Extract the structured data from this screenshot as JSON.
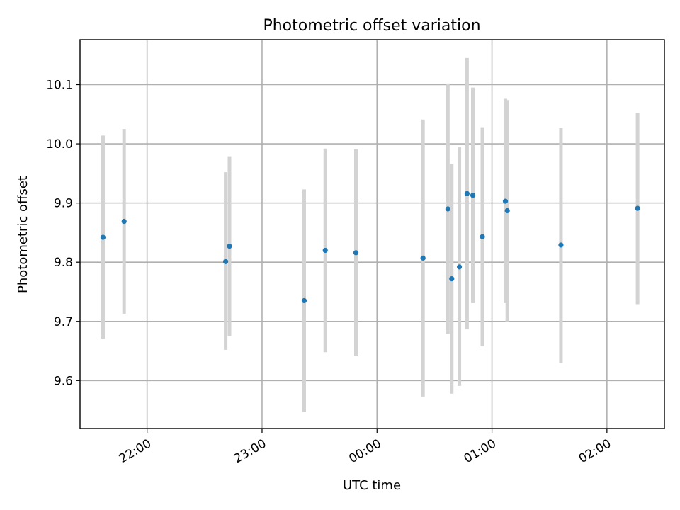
{
  "chart_data": {
    "type": "scatter",
    "title": "Photometric offset variation",
    "xlabel": "UTC time",
    "ylabel": "Photometric offset",
    "x_ticks": [
      "22:00",
      "23:00",
      "00:00",
      "01:00",
      "02:00"
    ],
    "x_tick_times": [
      "2024-01-01T22:00",
      "2024-01-01T23:00",
      "2024-01-02T00:00",
      "2024-01-02T01:00",
      "2024-01-02T02:00"
    ],
    "xlim": [
      "2024-01-01T21:25",
      "2024-01-02T02:30"
    ],
    "y_ticks": [
      9.6,
      9.7,
      9.8,
      9.9,
      10.0,
      10.1
    ],
    "ylim": [
      9.519,
      10.176
    ],
    "grid": true,
    "point_color": "#1f77b4",
    "errorbar_color": "#d3d3d3",
    "points": [
      {
        "t": "2024-01-01T21:37",
        "y": 9.842,
        "lo": 9.671,
        "hi": 10.014
      },
      {
        "t": "2024-01-01T21:48",
        "y": 9.869,
        "lo": 9.713,
        "hi": 10.025
      },
      {
        "t": "2024-01-01T22:41",
        "y": 9.801,
        "lo": 9.652,
        "hi": 9.952
      },
      {
        "t": "2024-01-01T22:43",
        "y": 9.827,
        "lo": 9.675,
        "hi": 9.979
      },
      {
        "t": "2024-01-01T23:22",
        "y": 9.735,
        "lo": 9.547,
        "hi": 9.923
      },
      {
        "t": "2024-01-01T23:33",
        "y": 9.82,
        "lo": 9.648,
        "hi": 9.992
      },
      {
        "t": "2024-01-01T23:49",
        "y": 9.816,
        "lo": 9.641,
        "hi": 9.991
      },
      {
        "t": "2024-01-02T00:24",
        "y": 9.807,
        "lo": 9.573,
        "hi": 10.041
      },
      {
        "t": "2024-01-02T00:37",
        "y": 9.89,
        "lo": 9.679,
        "hi": 10.102
      },
      {
        "t": "2024-01-02T00:39",
        "y": 9.772,
        "lo": 9.578,
        "hi": 9.966
      },
      {
        "t": "2024-01-02T00:43",
        "y": 9.792,
        "lo": 9.591,
        "hi": 9.994
      },
      {
        "t": "2024-01-02T00:47",
        "y": 9.916,
        "lo": 9.687,
        "hi": 10.145
      },
      {
        "t": "2024-01-02T00:50",
        "y": 9.913,
        "lo": 9.731,
        "hi": 10.095
      },
      {
        "t": "2024-01-02T00:55",
        "y": 9.843,
        "lo": 9.658,
        "hi": 10.028
      },
      {
        "t": "2024-01-02T01:07",
        "y": 9.903,
        "lo": 9.731,
        "hi": 10.076
      },
      {
        "t": "2024-01-02T01:08",
        "y": 9.887,
        "lo": 9.7,
        "hi": 10.074
      },
      {
        "t": "2024-01-02T01:36",
        "y": 9.829,
        "lo": 9.63,
        "hi": 10.027
      },
      {
        "t": "2024-01-02T02:16",
        "y": 9.891,
        "lo": 9.729,
        "hi": 10.052
      }
    ]
  }
}
